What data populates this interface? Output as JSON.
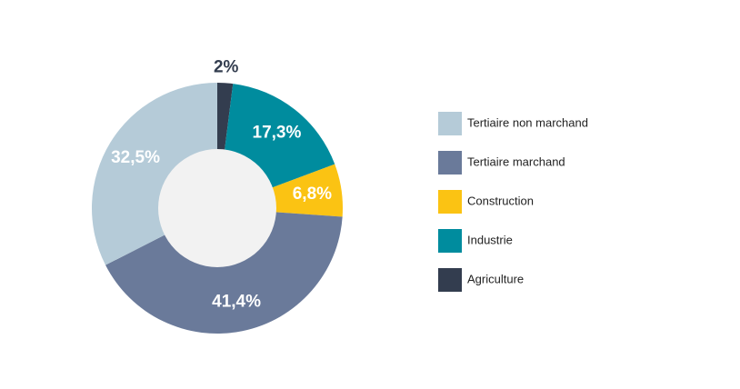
{
  "chart_data": {
    "type": "donut",
    "categories": [
      "Tertiaire non marchand",
      "Tertiaire marchand",
      "Construction",
      "Industrie",
      "Agriculture"
    ],
    "values": [
      32.5,
      41.4,
      6.8,
      17.3,
      2
    ],
    "value_labels": [
      "32,5%",
      "41,4%",
      "6,8%",
      "17,3%",
      "2%"
    ],
    "colors": [
      "#b5cbd8",
      "#6a7a9a",
      "#fbc313",
      "#008c9e",
      "#333d4f"
    ],
    "legend": "right"
  }
}
